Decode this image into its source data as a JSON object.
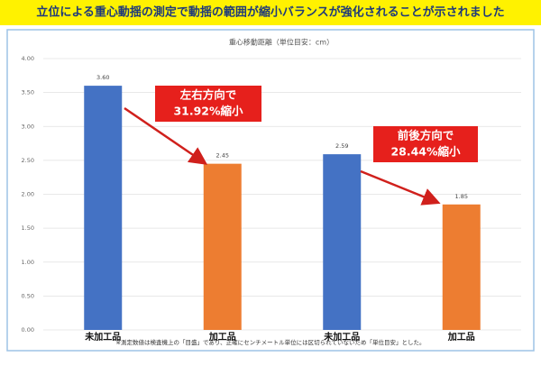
{
  "banner": "立位による重心動揺の測定で動揺の範囲が縮小バランスが強化されることが示されました",
  "chart_data": {
    "type": "bar",
    "title": "重心移動距離（単位目安：cm）",
    "categories": [
      "未加工品",
      "加工品",
      "未加工品",
      "加工品"
    ],
    "values": [
      3.6,
      2.45,
      2.59,
      1.85
    ],
    "value_labels": [
      "3.60",
      "2.45",
      "2.59",
      "1.85"
    ],
    "colors": [
      "#4472c4",
      "#ed7d31",
      "#4472c4",
      "#ed7d31"
    ],
    "ylim": [
      0,
      4
    ],
    "yticks": [
      {
        "value": 0,
        "label": "0.00"
      },
      {
        "value": 0.5,
        "label": "0.50"
      },
      {
        "value": 1,
        "label": "1.00"
      },
      {
        "value": 1.5,
        "label": "1.50"
      },
      {
        "value": 2,
        "label": "2.00"
      },
      {
        "value": 2.5,
        "label": "2.50"
      },
      {
        "value": 3,
        "label": "3.00"
      },
      {
        "value": 3.5,
        "label": "3.50"
      },
      {
        "value": 4,
        "label": "4.00"
      }
    ],
    "grid": true,
    "annotations": [
      {
        "lines": [
          "左右方向で",
          "31.92%縮小"
        ]
      },
      {
        "lines": [
          "前後方向で",
          "28.44%縮小"
        ]
      }
    ],
    "footnote": "※測定数値は検査機上の「目盛」であり、正確にセンチメートル単位には区切られていないため「単位目安」とした。"
  }
}
